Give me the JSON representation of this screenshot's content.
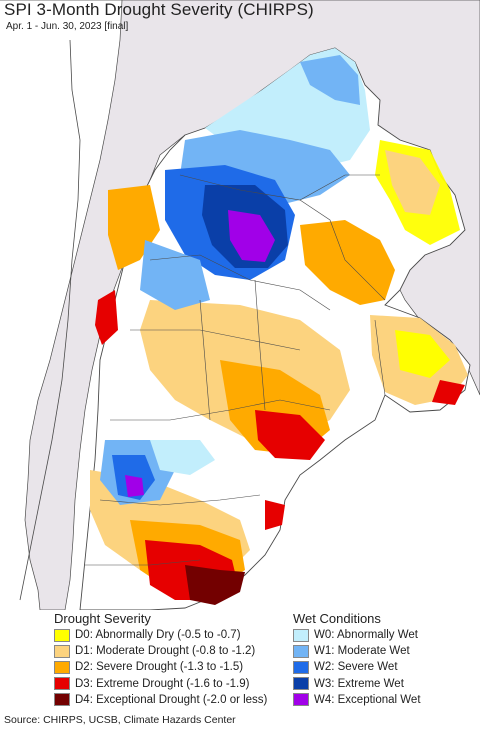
{
  "header": {
    "title": "SPI 3-Month Drought Severity (CHIRPS)",
    "subtitle": "Apr. 1 - Jun. 30, 2023 [final]"
  },
  "legend": {
    "drought_title": "Drought Severity",
    "wet_title": "Wet Conditions",
    "drought": [
      {
        "label": "D0: Abnormally Dry (-0.5 to -0.7)",
        "color": "#ffff00"
      },
      {
        "label": "D1: Moderate Drought (-0.8 to -1.2)",
        "color": "#fcd37f"
      },
      {
        "label": "D2: Severe Drought (-1.3 to -1.5)",
        "color": "#ffaa00"
      },
      {
        "label": "D3: Extreme Drought (-1.6 to -1.9)",
        "color": "#e60000"
      },
      {
        "label": "D4: Exceptional Drought (-2.0 or less)",
        "color": "#730000"
      }
    ],
    "wet": [
      {
        "label": "W0: Abnormally Wet",
        "color": "#c2eefc"
      },
      {
        "label": "W1: Moderate Wet",
        "color": "#72b4f5"
      },
      {
        "label": "W2: Severe Wet",
        "color": "#1f6be8"
      },
      {
        "label": "W3: Extreme Wet",
        "color": "#0a3fa8"
      },
      {
        "label": "W4: Exceptional Wet",
        "color": "#a100e8"
      }
    ]
  },
  "colors": {
    "water": "#ffffff",
    "outside_land": "#e9e5ea",
    "region_land": "#ffffff",
    "border": "#4a4a4a"
  },
  "source": "Source: CHIRPS, UCSB, Climate Hazards Center"
}
